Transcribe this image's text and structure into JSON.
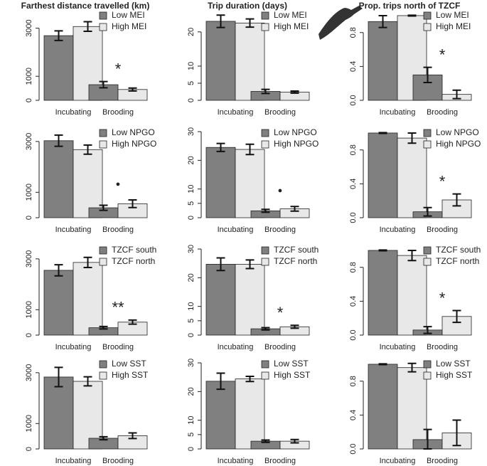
{
  "chart_data": [
    {
      "type": "bar",
      "title": "Farthest distance travelled (km)",
      "categories": [
        "Incubating",
        "Brooding"
      ],
      "series": [
        {
          "name": "Low MEI",
          "color": "#808080",
          "values": [
            2690,
            650
          ],
          "errors": [
            200,
            130
          ]
        },
        {
          "name": "High MEI",
          "color": "#e8e8e8",
          "values": [
            3070,
            450
          ],
          "errors": [
            200,
            60
          ]
        }
      ],
      "ylim": [
        0,
        3700
      ],
      "yticks": [
        0,
        1000,
        3000
      ],
      "annotation": "*"
    },
    {
      "type": "bar",
      "title": "Trip duration (days)",
      "categories": [
        "Incubating",
        "Brooding"
      ],
      "series": [
        {
          "name": "Low MEI",
          "color": "#808080",
          "values": [
            23.1,
            2.6
          ],
          "errors": [
            1.8,
            0.6
          ]
        },
        {
          "name": "High MEI",
          "color": "#e8e8e8",
          "values": [
            22.6,
            2.4
          ],
          "errors": [
            1.2,
            0.3
          ]
        }
      ],
      "ylim": [
        0,
        26
      ],
      "yticks": [
        0,
        5,
        10,
        20
      ]
    },
    {
      "type": "bar",
      "title": "Prop. trips north of TZCF",
      "categories": [
        "Incubating",
        "Brooding"
      ],
      "series": [
        {
          "name": "Low MEI",
          "color": "#808080",
          "values": [
            0.93,
            0.3
          ],
          "errors": [
            0.07,
            0.09
          ]
        },
        {
          "name": "High MEI",
          "color": "#e8e8e8",
          "values": [
            1.0,
            0.07
          ],
          "errors": [
            0.005,
            0.05
          ]
        }
      ],
      "ylim": [
        0,
        1.05
      ],
      "yticks": [
        {
          "value": 0,
          "label": "0.0"
        },
        {
          "value": 0.4,
          "label": "0.4"
        },
        {
          "value": 0.8,
          "label": "0.8"
        }
      ],
      "annotation": "*"
    },
    {
      "type": "bar",
      "categories": [
        "Incubating",
        "Brooding"
      ],
      "series": [
        {
          "name": "Low NPGO",
          "color": "#808080",
          "values": [
            3030,
            390
          ],
          "errors": [
            220,
            100
          ]
        },
        {
          "name": "High NPGO",
          "color": "#e8e8e8",
          "values": [
            2680,
            550
          ],
          "errors": [
            180,
            150
          ]
        }
      ],
      "ylim": [
        0,
        3500
      ],
      "yticks": [
        0,
        1000,
        3000
      ],
      "annotation": "●"
    },
    {
      "type": "bar",
      "categories": [
        "Incubating",
        "Brooding"
      ],
      "series": [
        {
          "name": "Low NPGO",
          "color": "#808080",
          "values": [
            24.5,
            2.4
          ],
          "errors": [
            1.4,
            0.5
          ]
        },
        {
          "name": "High NPGO",
          "color": "#e8e8e8",
          "values": [
            23.8,
            3.1
          ],
          "errors": [
            1.8,
            0.8
          ]
        }
      ],
      "ylim": [
        0,
        31
      ],
      "yticks": [
        0,
        5,
        10,
        20,
        30
      ],
      "annotation": "●"
    },
    {
      "type": "bar",
      "categories": [
        "Incubating",
        "Brooding"
      ],
      "series": [
        {
          "name": "Low NPGO",
          "color": "#808080",
          "values": [
            1.0,
            0.07
          ],
          "errors": [
            0.005,
            0.05
          ]
        },
        {
          "name": "High NPGO",
          "color": "#e8e8e8",
          "values": [
            0.94,
            0.21
          ],
          "errors": [
            0.06,
            0.07
          ]
        }
      ],
      "ylim": [
        0,
        1.05
      ],
      "yticks": [
        {
          "value": 0,
          "label": "0.0"
        },
        {
          "value": 0.4,
          "label": "0.4"
        },
        {
          "value": 0.8,
          "label": "0.8"
        }
      ],
      "annotation": "*"
    },
    {
      "type": "bar",
      "categories": [
        "Incubating",
        "Brooding"
      ],
      "series": [
        {
          "name": "TZCF south",
          "color": "#808080",
          "values": [
            2550,
            290
          ],
          "errors": [
            220,
            50
          ]
        },
        {
          "name": "TZCF north",
          "color": "#e8e8e8",
          "values": [
            2860,
            510
          ],
          "errors": [
            200,
            80
          ]
        }
      ],
      "ylim": [
        0,
        3500
      ],
      "yticks": [
        0,
        1000,
        3000
      ],
      "annotation": "**"
    },
    {
      "type": "bar",
      "categories": [
        "Incubating",
        "Brooding"
      ],
      "series": [
        {
          "name": "TZCF south",
          "color": "#808080",
          "values": [
            24.7,
            2.2
          ],
          "errors": [
            2.2,
            0.4
          ]
        },
        {
          "name": "TZCF north",
          "color": "#e8e8e8",
          "values": [
            24.7,
            2.9
          ],
          "errors": [
            1.5,
            0.5
          ]
        }
      ],
      "ylim": [
        0,
        31
      ],
      "yticks": [
        0,
        5,
        10,
        20,
        30
      ],
      "annotation": "*"
    },
    {
      "type": "bar",
      "categories": [
        "Incubating",
        "Brooding"
      ],
      "series": [
        {
          "name": "TZCF south",
          "color": "#808080",
          "values": [
            1.0,
            0.06
          ],
          "errors": [
            0.005,
            0.04
          ]
        },
        {
          "name": "TZCF north",
          "color": "#e8e8e8",
          "values": [
            0.94,
            0.22
          ],
          "errors": [
            0.06,
            0.07
          ]
        }
      ],
      "ylim": [
        0,
        1.05
      ],
      "yticks": [
        {
          "value": 0,
          "label": "0.0"
        },
        {
          "value": 0.4,
          "label": "0.4"
        },
        {
          "value": 0.8,
          "label": "0.8"
        }
      ],
      "annotation": "*"
    },
    {
      "type": "bar",
      "categories": [
        "Incubating",
        "Brooding"
      ],
      "series": [
        {
          "name": "Low SST",
          "color": "#808080",
          "values": [
            2830,
            420
          ],
          "errors": [
            380,
            60
          ]
        },
        {
          "name": "High SST",
          "color": "#e8e8e8",
          "values": [
            2660,
            520
          ],
          "errors": [
            180,
            110
          ]
        }
      ],
      "ylim": [
        0,
        3500
      ],
      "yticks": [
        0,
        1000,
        3000
      ]
    },
    {
      "type": "bar",
      "categories": [
        "Incubating",
        "Brooding"
      ],
      "series": [
        {
          "name": "Low SST",
          "color": "#808080",
          "values": [
            23.6,
            2.7
          ],
          "errors": [
            2.8,
            0.4
          ]
        },
        {
          "name": "High SST",
          "color": "#e8e8e8",
          "values": [
            24.4,
            2.7
          ],
          "errors": [
            0.9,
            0.6
          ]
        }
      ],
      "ylim": [
        0,
        31
      ],
      "yticks": [
        0,
        5,
        10,
        20,
        30
      ]
    },
    {
      "type": "bar",
      "categories": [
        "Incubating",
        "Brooding"
      ],
      "series": [
        {
          "name": "Low SST",
          "color": "#808080",
          "values": [
            1.0,
            0.11
          ],
          "errors": [
            0.005,
            0.12
          ]
        },
        {
          "name": "High SST",
          "color": "#e8e8e8",
          "values": [
            0.96,
            0.19
          ],
          "errors": [
            0.05,
            0.15
          ]
        }
      ],
      "ylim": [
        0,
        1.05
      ],
      "yticks": [
        {
          "value": 0,
          "label": "0.0"
        },
        {
          "value": 0.4,
          "label": "0.4"
        },
        {
          "value": 0.8,
          "label": "0.8"
        }
      ]
    }
  ]
}
